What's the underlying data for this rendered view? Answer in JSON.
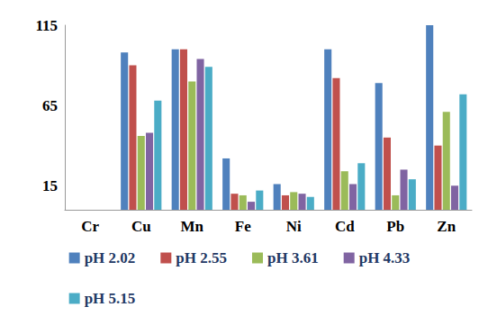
{
  "chart_data": {
    "type": "bar",
    "categories": [
      "Cr",
      "Cu",
      "Mn",
      "Fe",
      "Ni",
      "Cd",
      "Pb",
      "Zn"
    ],
    "series": [
      {
        "name": "pH 2.02",
        "color": "#4f81bd",
        "values": [
          0,
          98,
          100,
          32,
          16,
          100,
          79,
          115
        ]
      },
      {
        "name": "pH 2.55",
        "color": "#c0504d",
        "values": [
          0,
          90,
          100,
          10,
          9,
          82,
          45,
          40
        ]
      },
      {
        "name": "pH 3.61",
        "color": "#9bbb59",
        "values": [
          0,
          46,
          80,
          9,
          11,
          24,
          9,
          61
        ]
      },
      {
        "name": "pH 4.33",
        "color": "#8064a2",
        "values": [
          0,
          48,
          94,
          5,
          10,
          16,
          25,
          15
        ]
      },
      {
        "name": "pH 5.15",
        "color": "#4bacc6",
        "values": [
          0,
          68,
          89,
          12,
          8,
          29,
          19,
          72
        ]
      }
    ],
    "ylim": [
      0,
      115
    ],
    "yticks": [
      15,
      65,
      115
    ],
    "grid": false,
    "legend": "bottom"
  }
}
